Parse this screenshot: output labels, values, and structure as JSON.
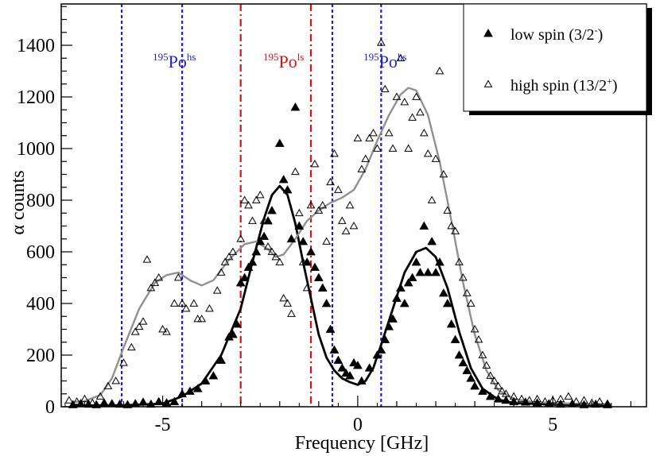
{
  "chart_data": {
    "type": "scatter",
    "xlabel": "Frequency [GHz]",
    "ylabel": "α counts",
    "xlim": [
      -7.6,
      7.4
    ],
    "ylim": [
      0,
      1560
    ],
    "x_ticks": [
      -5,
      0,
      5
    ],
    "y_ticks": [
      0,
      200,
      400,
      600,
      800,
      1000,
      1200,
      1400
    ],
    "grid": false,
    "legend_position": "top-right",
    "legend": [
      {
        "label": "low spin (3/2",
        "sup": "-",
        "close": ")",
        "marker": "filled-triangle"
      },
      {
        "label": "high spin (13/2",
        "sup": "+",
        "close": ")",
        "marker": "open-triangle"
      }
    ],
    "annotations": [
      {
        "mass": "195",
        "element": "Po",
        "state": "hs",
        "color": "#1f1fcc",
        "x": -4.7
      },
      {
        "mass": "195",
        "element": "Po",
        "state": "ls",
        "color": "#e01010",
        "x": -1.9
      },
      {
        "mass": "195",
        "element": "Po",
        "state": "hs",
        "color": "#1f1fcc",
        "x": 0.7
      }
    ],
    "vlines": [
      {
        "x": -6.05,
        "color": "#1f1fcc",
        "style": "dotted"
      },
      {
        "x": -4.5,
        "color": "#1f1fcc",
        "style": "dotted"
      },
      {
        "x": -3.0,
        "color": "#e01010",
        "style": "dashdot"
      },
      {
        "x": -1.2,
        "color": "#e01010",
        "style": "dashdot"
      },
      {
        "x": -0.65,
        "color": "#1f1fcc",
        "style": "dotted"
      },
      {
        "x": 0.6,
        "color": "#1f1fcc",
        "style": "dotted"
      }
    ],
    "series": [
      {
        "marker": "filled-triangle",
        "color": "#000000",
        "fit_color": "#000000",
        "points": [
          [
            -7.3,
            8
          ],
          [
            -7.1,
            12
          ],
          [
            -6.9,
            10
          ],
          [
            -6.7,
            8
          ],
          [
            -6.5,
            15
          ],
          [
            -6.3,
            12
          ],
          [
            -6.1,
            10
          ],
          [
            -5.9,
            8
          ],
          [
            -5.7,
            12
          ],
          [
            -5.5,
            18
          ],
          [
            -5.3,
            10
          ],
          [
            -5.1,
            20
          ],
          [
            -4.9,
            15
          ],
          [
            -4.7,
            20
          ],
          [
            -4.5,
            50
          ],
          [
            -4.3,
            60
          ],
          [
            -4.1,
            70
          ],
          [
            -3.9,
            100
          ],
          [
            -3.7,
            120
          ],
          [
            -3.5,
            180
          ],
          [
            -3.3,
            270
          ],
          [
            -3.2,
            280
          ],
          [
            -3.1,
            320
          ],
          [
            -3.0,
            480
          ],
          [
            -2.9,
            500
          ],
          [
            -2.8,
            540
          ],
          [
            -2.7,
            560
          ],
          [
            -2.6,
            600
          ],
          [
            -2.5,
            640
          ],
          [
            -2.4,
            660
          ],
          [
            -2.3,
            720
          ],
          [
            -2.2,
            760
          ],
          [
            -2.0,
            1020
          ],
          [
            -1.9,
            880
          ],
          [
            -1.8,
            840
          ],
          [
            -1.7,
            650
          ],
          [
            -1.6,
            1160
          ],
          [
            -1.5,
            700
          ],
          [
            -1.4,
            640
          ],
          [
            -1.3,
            560
          ],
          [
            -1.2,
            600
          ],
          [
            -1.1,
            540
          ],
          [
            -1.0,
            500
          ],
          [
            -0.9,
            460
          ],
          [
            -0.8,
            400
          ],
          [
            -0.7,
            300
          ],
          [
            -0.6,
            220
          ],
          [
            -0.5,
            180
          ],
          [
            -0.4,
            150
          ],
          [
            -0.3,
            130
          ],
          [
            -0.2,
            120
          ],
          [
            -0.1,
            170
          ],
          [
            0.0,
            160
          ],
          [
            0.1,
            100
          ],
          [
            0.3,
            150
          ],
          [
            0.5,
            200
          ],
          [
            0.6,
            220
          ],
          [
            0.7,
            260
          ],
          [
            0.8,
            310
          ],
          [
            0.9,
            340
          ],
          [
            1.0,
            420
          ],
          [
            1.1,
            460
          ],
          [
            1.2,
            400
          ],
          [
            1.3,
            480
          ],
          [
            1.4,
            500
          ],
          [
            1.5,
            560
          ],
          [
            1.6,
            520
          ],
          [
            1.7,
            700
          ],
          [
            1.8,
            520
          ],
          [
            1.9,
            640
          ],
          [
            2.0,
            520
          ],
          [
            2.1,
            560
          ],
          [
            2.2,
            440
          ],
          [
            2.3,
            400
          ],
          [
            2.4,
            320
          ],
          [
            2.5,
            260
          ],
          [
            2.6,
            200
          ],
          [
            2.7,
            170
          ],
          [
            2.8,
            140
          ],
          [
            2.9,
            110
          ],
          [
            3.0,
            80
          ],
          [
            3.2,
            60
          ],
          [
            3.4,
            40
          ],
          [
            3.6,
            30
          ],
          [
            3.8,
            25
          ],
          [
            4.0,
            20
          ],
          [
            4.3,
            18
          ],
          [
            4.6,
            15
          ],
          [
            4.9,
            12
          ],
          [
            5.2,
            10
          ],
          [
            5.5,
            12
          ],
          [
            5.8,
            8
          ],
          [
            6.1,
            10
          ],
          [
            6.4,
            8
          ]
        ],
        "fit": [
          [
            -7.3,
            5
          ],
          [
            -6.0,
            6
          ],
          [
            -5.0,
            12
          ],
          [
            -4.5,
            40
          ],
          [
            -4.0,
            90
          ],
          [
            -3.5,
            200
          ],
          [
            -3.0,
            380
          ],
          [
            -2.7,
            560
          ],
          [
            -2.4,
            730
          ],
          [
            -2.2,
            820
          ],
          [
            -2.0,
            855
          ],
          [
            -1.8,
            820
          ],
          [
            -1.6,
            710
          ],
          [
            -1.4,
            560
          ],
          [
            -1.2,
            420
          ],
          [
            -1.0,
            280
          ],
          [
            -0.8,
            190
          ],
          [
            -0.6,
            140
          ],
          [
            -0.4,
            110
          ],
          [
            -0.2,
            95
          ],
          [
            0.0,
            85
          ],
          [
            0.2,
            100
          ],
          [
            0.4,
            150
          ],
          [
            0.6,
            240
          ],
          [
            0.9,
            380
          ],
          [
            1.2,
            520
          ],
          [
            1.5,
            600
          ],
          [
            1.75,
            615
          ],
          [
            2.0,
            580
          ],
          [
            2.3,
            460
          ],
          [
            2.6,
            290
          ],
          [
            2.9,
            150
          ],
          [
            3.2,
            70
          ],
          [
            3.6,
            28
          ],
          [
            4.0,
            14
          ],
          [
            5.0,
            8
          ],
          [
            6.5,
            6
          ]
        ]
      },
      {
        "marker": "open-triangle",
        "color": "#000000",
        "fit_color": "#909090",
        "points": [
          [
            -7.4,
            25
          ],
          [
            -7.2,
            20
          ],
          [
            -7.0,
            30
          ],
          [
            -6.8,
            15
          ],
          [
            -6.6,
            40
          ],
          [
            -6.4,
            80
          ],
          [
            -6.2,
            100
          ],
          [
            -6.0,
            170
          ],
          [
            -5.8,
            230
          ],
          [
            -5.7,
            290
          ],
          [
            -5.6,
            310
          ],
          [
            -5.5,
            330
          ],
          [
            -5.4,
            570
          ],
          [
            -5.3,
            460
          ],
          [
            -5.2,
            480
          ],
          [
            -5.1,
            500
          ],
          [
            -5.0,
            300
          ],
          [
            -4.9,
            290
          ],
          [
            -4.7,
            400
          ],
          [
            -4.6,
            500
          ],
          [
            -4.5,
            400
          ],
          [
            -4.4,
            380
          ],
          [
            -4.2,
            400
          ],
          [
            -4.1,
            340
          ],
          [
            -4.0,
            340
          ],
          [
            -3.8,
            380
          ],
          [
            -3.6,
            450
          ],
          [
            -3.5,
            520
          ],
          [
            -3.4,
            560
          ],
          [
            -3.3,
            580
          ],
          [
            -3.2,
            600
          ],
          [
            -3.0,
            650
          ],
          [
            -2.9,
            800
          ],
          [
            -2.8,
            780
          ],
          [
            -2.7,
            720
          ],
          [
            -2.6,
            800
          ],
          [
            -2.5,
            820
          ],
          [
            -2.4,
            720
          ],
          [
            -2.3,
            620
          ],
          [
            -2.2,
            600
          ],
          [
            -2.1,
            580
          ],
          [
            -2.0,
            560
          ],
          [
            -1.9,
            420
          ],
          [
            -1.8,
            400
          ],
          [
            -1.7,
            360
          ],
          [
            -1.6,
            910
          ],
          [
            -1.5,
            750
          ],
          [
            -1.4,
            560
          ],
          [
            -1.3,
            460
          ],
          [
            -1.2,
            780
          ],
          [
            -1.1,
            940
          ],
          [
            -1.0,
            760
          ],
          [
            -0.9,
            780
          ],
          [
            -0.8,
            640
          ],
          [
            -0.7,
            870
          ],
          [
            -0.6,
            980
          ],
          [
            -0.5,
            840
          ],
          [
            -0.4,
            720
          ],
          [
            -0.3,
            680
          ],
          [
            -0.2,
            780
          ],
          [
            -0.1,
            700
          ],
          [
            0.0,
            1040
          ],
          [
            0.1,
            920
          ],
          [
            0.2,
            960
          ],
          [
            0.3,
            1040
          ],
          [
            0.4,
            1060
          ],
          [
            0.5,
            1000
          ],
          [
            0.6,
            1410
          ],
          [
            0.7,
            1230
          ],
          [
            0.8,
            1060
          ],
          [
            0.9,
            1000
          ],
          [
            1.0,
            1200
          ],
          [
            1.1,
            1350
          ],
          [
            1.2,
            1180
          ],
          [
            1.3,
            1000
          ],
          [
            1.4,
            1120
          ],
          [
            1.5,
            1200
          ],
          [
            1.6,
            1140
          ],
          [
            1.7,
            1060
          ],
          [
            1.8,
            980
          ],
          [
            1.9,
            800
          ],
          [
            2.0,
            960
          ],
          [
            2.1,
            1300
          ],
          [
            2.2,
            900
          ],
          [
            2.3,
            760
          ],
          [
            2.4,
            700
          ],
          [
            2.5,
            680
          ],
          [
            2.6,
            560
          ],
          [
            2.7,
            500
          ],
          [
            2.8,
            440
          ],
          [
            2.9,
            400
          ],
          [
            3.0,
            300
          ],
          [
            3.1,
            260
          ],
          [
            3.2,
            200
          ],
          [
            3.3,
            160
          ],
          [
            3.4,
            120
          ],
          [
            3.5,
            100
          ],
          [
            3.6,
            80
          ],
          [
            3.7,
            60
          ],
          [
            3.8,
            50
          ],
          [
            4.0,
            40
          ],
          [
            4.2,
            30
          ],
          [
            4.4,
            25
          ],
          [
            4.6,
            30
          ],
          [
            4.8,
            20
          ],
          [
            5.0,
            25
          ],
          [
            5.2,
            30
          ],
          [
            5.4,
            40
          ],
          [
            5.6,
            20
          ],
          [
            5.8,
            25
          ],
          [
            6.0,
            15
          ],
          [
            6.2,
            20
          ],
          [
            6.4,
            12
          ]
        ],
        "fit": [
          [
            -7.3,
            18
          ],
          [
            -7.0,
            22
          ],
          [
            -6.6,
            45
          ],
          [
            -6.3,
            110
          ],
          [
            -6.0,
            230
          ],
          [
            -5.6,
            380
          ],
          [
            -5.2,
            480
          ],
          [
            -4.9,
            510
          ],
          [
            -4.6,
            520
          ],
          [
            -4.3,
            490
          ],
          [
            -4.0,
            470
          ],
          [
            -3.7,
            490
          ],
          [
            -3.3,
            570
          ],
          [
            -2.9,
            630
          ],
          [
            -2.6,
            640
          ],
          [
            -2.3,
            610
          ],
          [
            -2.1,
            580
          ],
          [
            -1.9,
            590
          ],
          [
            -1.6,
            650
          ],
          [
            -1.3,
            720
          ],
          [
            -1.0,
            760
          ],
          [
            -0.7,
            790
          ],
          [
            -0.4,
            810
          ],
          [
            -0.1,
            840
          ],
          [
            0.2,
            920
          ],
          [
            0.5,
            1030
          ],
          [
            0.8,
            1130
          ],
          [
            1.1,
            1210
          ],
          [
            1.3,
            1235
          ],
          [
            1.5,
            1225
          ],
          [
            1.8,
            1130
          ],
          [
            2.1,
            950
          ],
          [
            2.4,
            720
          ],
          [
            2.7,
            480
          ],
          [
            3.0,
            280
          ],
          [
            3.3,
            140
          ],
          [
            3.6,
            65
          ],
          [
            4.0,
            30
          ],
          [
            4.5,
            18
          ],
          [
            5.5,
            12
          ],
          [
            6.5,
            10
          ]
        ]
      }
    ]
  }
}
